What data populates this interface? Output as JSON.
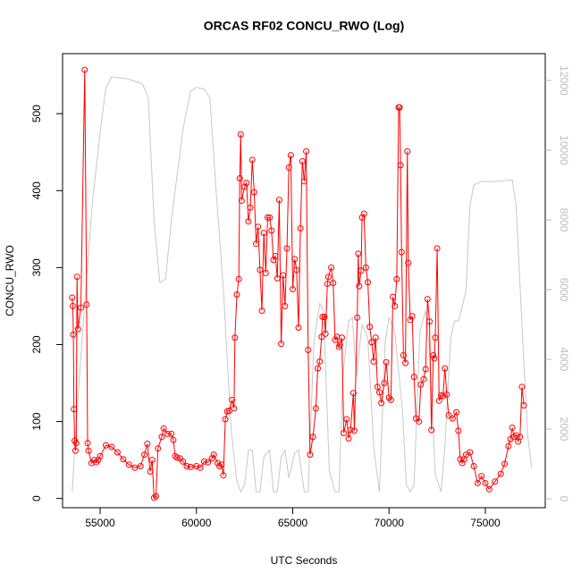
{
  "chart_data": {
    "type": "line",
    "title": "ORCAS RF02 CONCU_RWO (Log)",
    "x_label": "UTC Seconds",
    "y_label": "CONCU_RWO",
    "xlim": [
      53050,
      78110
    ],
    "xticks": [
      55000,
      60000,
      65000,
      70000,
      75000
    ],
    "ylim": [
      -12,
      578
    ],
    "yticks": [
      0,
      100,
      200,
      300,
      400,
      500
    ],
    "y2lim": [
      -256,
      12769
    ],
    "y2ticks": [
      0,
      2000,
      4000,
      6000,
      8000,
      10000,
      12000
    ],
    "series": [
      {
        "color": "#ff0000",
        "markers": true,
        "x": [
          53550,
          53580,
          53610,
          53640,
          53680,
          53720,
          53760,
          53800,
          53850,
          54000,
          54200,
          54300,
          54350,
          54400,
          54550,
          54700,
          54800,
          54900,
          55000,
          55300,
          55600,
          55900,
          56200,
          56500,
          56800,
          57100,
          57300,
          57450,
          57600,
          57700,
          57800,
          57900,
          58000,
          58200,
          58300,
          58500,
          58700,
          58800,
          58900,
          59000,
          59150,
          59300,
          59500,
          59700,
          60000,
          60200,
          60400,
          60600,
          60800,
          60900,
          61100,
          61200,
          61300,
          61400,
          61500,
          61600,
          61700,
          61850,
          61950,
          62000,
          62100,
          62200,
          62250,
          62300,
          62350,
          62500,
          62600,
          62700,
          62800,
          62900,
          63000,
          63100,
          63200,
          63300,
          63400,
          63500,
          63600,
          63700,
          63800,
          63900,
          64000,
          64100,
          64200,
          64300,
          64400,
          64500,
          64600,
          64700,
          64800,
          64900,
          65000,
          65100,
          65200,
          65300,
          65400,
          65500,
          65600,
          65700,
          65800,
          65900,
          66050,
          66200,
          66300,
          66400,
          66500,
          66550,
          66650,
          66700,
          66800,
          66850,
          67000,
          67100,
          67200,
          67300,
          67400,
          67450,
          67550,
          67650,
          67800,
          67900,
          68000,
          68150,
          68200,
          68350,
          68400,
          68450,
          68550,
          68600,
          68700,
          68800,
          68900,
          69000,
          69100,
          69200,
          69300,
          69400,
          69500,
          69600,
          69750,
          69850,
          70000,
          70100,
          70200,
          70300,
          70400,
          70500,
          70550,
          70600,
          70650,
          70750,
          70850,
          70950,
          71000,
          71100,
          71200,
          71300,
          71400,
          71550,
          71650,
          71800,
          71900,
          72000,
          72100,
          72200,
          72300,
          72350,
          72400,
          72500,
          72600,
          72700,
          72800,
          72900,
          73000,
          73100,
          73300,
          73500,
          73600,
          73700,
          73800,
          73900,
          74000,
          74200,
          74400,
          74600,
          74800,
          75000,
          75200,
          75500,
          75800,
          76000,
          76200,
          76300,
          76400,
          76500,
          76600,
          76700,
          76800,
          76900,
          77000
        ],
        "values": [
          261,
          250,
          213,
          116,
          75,
          62,
          72,
          288,
          220,
          248,
          557,
          252,
          72,
          62,
          46,
          50,
          47,
          50,
          55,
          69,
          67,
          60,
          51,
          44,
          40,
          42,
          57,
          71,
          35,
          50,
          1,
          3,
          65,
          80,
          91,
          84,
          84,
          76,
          55,
          53,
          52,
          48,
          42,
          41,
          42,
          40,
          48,
          47,
          52,
          57,
          46,
          42,
          44,
          30,
          103,
          113,
          114,
          128,
          117,
          209,
          265,
          285,
          416,
          473,
          387,
          405,
          410,
          360,
          378,
          440,
          398,
          331,
          353,
          297,
          244,
          345,
          293,
          365,
          365,
          348,
          310,
          315,
          286,
          388,
          201,
          290,
          250,
          325,
          430,
          446,
          272,
          311,
          297,
          222,
          351,
          438,
          412,
          451,
          193,
          57,
          80,
          117,
          169,
          178,
          210,
          236,
          236,
          214,
          279,
          288,
          300,
          280,
          206,
          210,
          197,
          200,
          209,
          85,
          103,
          78,
          89,
          137,
          88,
          235,
          318,
          276,
          296,
          365,
          370,
          300,
          281,
          223,
          203,
          178,
          209,
          145,
          138,
          124,
          150,
          177,
          131,
          128,
          262,
          250,
          285,
          508,
          508,
          433,
          320,
          186,
          176,
          451,
          306,
          232,
          237,
          158,
          104,
          100,
          148,
          155,
          168,
          259,
          230,
          89,
          186,
          182,
          209,
          325,
          127,
          134,
          133,
          169,
          135,
          108,
          104,
          112,
          88,
          51,
          46,
          51,
          57,
          60,
          42,
          20,
          29,
          20,
          12,
          22,
          32,
          45,
          68,
          77,
          92,
          80,
          82,
          74,
          80,
          145,
          121
        ]
      },
      {
        "color": "#c8c8c8",
        "axis": "y2",
        "x": [
          53550,
          53800,
          54200,
          54600,
          55000,
          55300,
          55600,
          56400,
          57200,
          57500,
          57800,
          58100,
          58400,
          58700,
          59300,
          59700,
          60000,
          60400,
          60700,
          61000,
          61400,
          61800,
          62100,
          62300,
          62500,
          62700,
          62900,
          63100,
          63300,
          63500,
          63800,
          64000,
          64200,
          64400,
          64600,
          64800,
          65100,
          65300,
          65600,
          65800,
          66100,
          66400,
          66600,
          66900,
          67200,
          67400,
          67600,
          67900,
          68100,
          68300,
          68600,
          68900,
          69200,
          69500,
          69800,
          70000,
          70300,
          70700,
          70900,
          71100,
          71300,
          71600,
          71900,
          72100,
          72400,
          72700,
          72900,
          73200,
          73400,
          73600,
          73800,
          74000,
          74200,
          74400,
          74800,
          75500,
          76400,
          76600,
          76900,
          77200,
          77400
        ],
        "values": [
          200,
          2500,
          5600,
          8500,
          10500,
          11800,
          12100,
          12050,
          11900,
          11500,
          8000,
          6200,
          6300,
          8000,
          10600,
          11700,
          11800,
          11750,
          11500,
          9000,
          6000,
          2000,
          500,
          200,
          400,
          1400,
          1400,
          200,
          200,
          1200,
          1400,
          200,
          200,
          1200,
          1400,
          600,
          1300,
          1400,
          200,
          200,
          4500,
          5600,
          5400,
          800,
          200,
          200,
          3500,
          5100,
          5200,
          3500,
          5000,
          4600,
          1500,
          200,
          4500,
          5200,
          4800,
          2500,
          400,
          200,
          400,
          4800,
          5400,
          4300,
          700,
          200,
          1500,
          4600,
          5100,
          5100,
          5500,
          6000,
          8400,
          9000,
          9100,
          9100,
          9150,
          8400,
          5000,
          1800,
          900
        ]
      }
    ]
  }
}
